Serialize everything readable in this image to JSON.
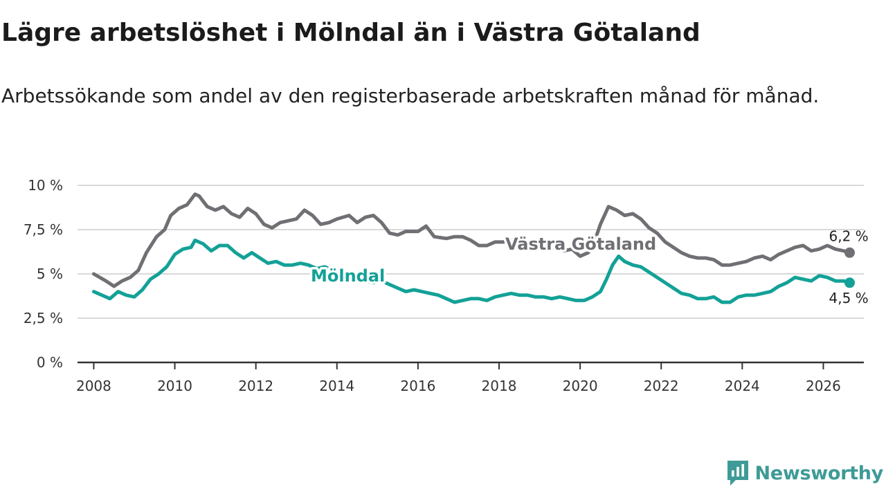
{
  "colors": {
    "vg": "#6f6f74",
    "molndal": "#13a197",
    "grid": "#d9d9d9",
    "axis": "#333333",
    "brand": "#3e9b97"
  },
  "chart_data": {
    "type": "line",
    "title": "Lägre arbetslöshet i Mölndal än i Västra Götaland",
    "subtitle": "Arbetssökande som andel av den registerbaserade arbetskraften månad för månad.",
    "xlabel": "",
    "ylabel": "",
    "xlim": [
      2007.6,
      2027.0
    ],
    "ylim": [
      0,
      10
    ],
    "x_ticks": [
      2008,
      2010,
      2012,
      2014,
      2016,
      2018,
      2020,
      2022,
      2024,
      2026
    ],
    "x_tick_labels": [
      "2008",
      "2010",
      "2012",
      "2014",
      "2016",
      "2018",
      "2020",
      "2022",
      "2024",
      "2026"
    ],
    "y_ticks": [
      0,
      2.5,
      5,
      7.5,
      10
    ],
    "y_tick_labels": [
      "0 %",
      "2,5 %",
      "5 %",
      "7,5 %",
      "10 %"
    ],
    "grid": true,
    "series": [
      {
        "name": "Västra Götaland",
        "color": "#6f6f74",
        "end_label": "6,2 %",
        "points": [
          [
            2008.0,
            5.0
          ],
          [
            2008.3,
            4.6
          ],
          [
            2008.5,
            4.3
          ],
          [
            2008.7,
            4.6
          ],
          [
            2008.9,
            4.8
          ],
          [
            2009.1,
            5.2
          ],
          [
            2009.3,
            6.2
          ],
          [
            2009.55,
            7.1
          ],
          [
            2009.75,
            7.5
          ],
          [
            2009.9,
            8.3
          ],
          [
            2010.1,
            8.7
          ],
          [
            2010.3,
            8.9
          ],
          [
            2010.5,
            9.5
          ],
          [
            2010.6,
            9.4
          ],
          [
            2010.8,
            8.8
          ],
          [
            2011.0,
            8.6
          ],
          [
            2011.2,
            8.8
          ],
          [
            2011.4,
            8.4
          ],
          [
            2011.6,
            8.2
          ],
          [
            2011.8,
            8.7
          ],
          [
            2012.0,
            8.4
          ],
          [
            2012.2,
            7.8
          ],
          [
            2012.4,
            7.6
          ],
          [
            2012.6,
            7.9
          ],
          [
            2012.8,
            8.0
          ],
          [
            2013.0,
            8.1
          ],
          [
            2013.2,
            8.6
          ],
          [
            2013.4,
            8.3
          ],
          [
            2013.6,
            7.8
          ],
          [
            2013.8,
            7.9
          ],
          [
            2014.0,
            8.1
          ],
          [
            2014.3,
            8.3
          ],
          [
            2014.5,
            7.9
          ],
          [
            2014.7,
            8.2
          ],
          [
            2014.9,
            8.3
          ],
          [
            2015.1,
            7.9
          ],
          [
            2015.3,
            7.3
          ],
          [
            2015.5,
            7.2
          ],
          [
            2015.7,
            7.4
          ],
          [
            2016.0,
            7.4
          ],
          [
            2016.2,
            7.7
          ],
          [
            2016.4,
            7.1
          ],
          [
            2016.7,
            7.0
          ],
          [
            2016.9,
            7.1
          ],
          [
            2017.1,
            7.1
          ],
          [
            2017.3,
            6.9
          ],
          [
            2017.5,
            6.6
          ],
          [
            2017.7,
            6.6
          ],
          [
            2017.9,
            6.8
          ],
          [
            2018.1,
            6.8
          ],
          [
            2018.3,
            6.9
          ],
          [
            2018.5,
            6.7
          ],
          [
            2018.7,
            6.5
          ],
          [
            2018.9,
            6.6
          ],
          [
            2019.1,
            6.4
          ],
          [
            2019.3,
            6.5
          ],
          [
            2019.6,
            6.3
          ],
          [
            2019.8,
            6.4
          ],
          [
            2020.0,
            6.0
          ],
          [
            2020.2,
            6.2
          ],
          [
            2020.35,
            6.8
          ],
          [
            2020.5,
            7.8
          ],
          [
            2020.7,
            8.8
          ],
          [
            2020.9,
            8.6
          ],
          [
            2021.1,
            8.3
          ],
          [
            2021.3,
            8.4
          ],
          [
            2021.5,
            8.1
          ],
          [
            2021.7,
            7.6
          ],
          [
            2021.9,
            7.3
          ],
          [
            2022.1,
            6.8
          ],
          [
            2022.3,
            6.5
          ],
          [
            2022.5,
            6.2
          ],
          [
            2022.7,
            6.0
          ],
          [
            2022.9,
            5.9
          ],
          [
            2023.1,
            5.9
          ],
          [
            2023.3,
            5.8
          ],
          [
            2023.5,
            5.5
          ],
          [
            2023.7,
            5.5
          ],
          [
            2023.9,
            5.6
          ],
          [
            2024.1,
            5.7
          ],
          [
            2024.3,
            5.9
          ],
          [
            2024.5,
            6.0
          ],
          [
            2024.7,
            5.8
          ],
          [
            2024.9,
            6.1
          ],
          [
            2025.1,
            6.3
          ],
          [
            2025.3,
            6.5
          ],
          [
            2025.5,
            6.6
          ],
          [
            2025.7,
            6.3
          ],
          [
            2025.9,
            6.4
          ],
          [
            2026.1,
            6.6
          ],
          [
            2026.3,
            6.4
          ],
          [
            2026.5,
            6.3
          ],
          [
            2026.65,
            6.2
          ]
        ]
      },
      {
        "name": "Mölndal",
        "color": "#13a197",
        "end_label": "4,5 %",
        "points": [
          [
            2008.0,
            4.0
          ],
          [
            2008.2,
            3.8
          ],
          [
            2008.4,
            3.6
          ],
          [
            2008.6,
            4.0
          ],
          [
            2008.8,
            3.8
          ],
          [
            2009.0,
            3.7
          ],
          [
            2009.2,
            4.1
          ],
          [
            2009.4,
            4.7
          ],
          [
            2009.6,
            5.0
          ],
          [
            2009.8,
            5.4
          ],
          [
            2010.0,
            6.1
          ],
          [
            2010.2,
            6.4
          ],
          [
            2010.4,
            6.5
          ],
          [
            2010.5,
            6.9
          ],
          [
            2010.7,
            6.7
          ],
          [
            2010.9,
            6.3
          ],
          [
            2011.1,
            6.6
          ],
          [
            2011.3,
            6.6
          ],
          [
            2011.5,
            6.2
          ],
          [
            2011.7,
            5.9
          ],
          [
            2011.9,
            6.2
          ],
          [
            2012.1,
            5.9
          ],
          [
            2012.3,
            5.6
          ],
          [
            2012.5,
            5.7
          ],
          [
            2012.7,
            5.5
          ],
          [
            2012.9,
            5.5
          ],
          [
            2013.1,
            5.6
          ],
          [
            2013.3,
            5.5
          ],
          [
            2013.5,
            5.3
          ],
          [
            2013.7,
            5.4
          ],
          [
            2013.9,
            5.2
          ],
          [
            2014.1,
            5.0
          ],
          [
            2014.3,
            4.8
          ],
          [
            2014.5,
            4.6
          ],
          [
            2014.7,
            4.6
          ],
          [
            2014.9,
            4.5
          ],
          [
            2015.1,
            4.6
          ],
          [
            2015.3,
            4.4
          ],
          [
            2015.5,
            4.2
          ],
          [
            2015.7,
            4.0
          ],
          [
            2015.9,
            4.1
          ],
          [
            2016.1,
            4.0
          ],
          [
            2016.3,
            3.9
          ],
          [
            2016.5,
            3.8
          ],
          [
            2016.7,
            3.6
          ],
          [
            2016.9,
            3.4
          ],
          [
            2017.1,
            3.5
          ],
          [
            2017.3,
            3.6
          ],
          [
            2017.5,
            3.6
          ],
          [
            2017.7,
            3.5
          ],
          [
            2017.9,
            3.7
          ],
          [
            2018.1,
            3.8
          ],
          [
            2018.3,
            3.9
          ],
          [
            2018.5,
            3.8
          ],
          [
            2018.7,
            3.8
          ],
          [
            2018.9,
            3.7
          ],
          [
            2019.1,
            3.7
          ],
          [
            2019.3,
            3.6
          ],
          [
            2019.5,
            3.7
          ],
          [
            2019.7,
            3.6
          ],
          [
            2019.9,
            3.5
          ],
          [
            2020.1,
            3.5
          ],
          [
            2020.3,
            3.7
          ],
          [
            2020.5,
            4.0
          ],
          [
            2020.65,
            4.7
          ],
          [
            2020.8,
            5.5
          ],
          [
            2020.95,
            6.0
          ],
          [
            2021.1,
            5.7
          ],
          [
            2021.3,
            5.5
          ],
          [
            2021.5,
            5.4
          ],
          [
            2021.7,
            5.1
          ],
          [
            2021.9,
            4.8
          ],
          [
            2022.1,
            4.5
          ],
          [
            2022.3,
            4.2
          ],
          [
            2022.5,
            3.9
          ],
          [
            2022.7,
            3.8
          ],
          [
            2022.9,
            3.6
          ],
          [
            2023.1,
            3.6
          ],
          [
            2023.3,
            3.7
          ],
          [
            2023.5,
            3.4
          ],
          [
            2023.7,
            3.4
          ],
          [
            2023.9,
            3.7
          ],
          [
            2024.1,
            3.8
          ],
          [
            2024.3,
            3.8
          ],
          [
            2024.5,
            3.9
          ],
          [
            2024.7,
            4.0
          ],
          [
            2024.9,
            4.3
          ],
          [
            2025.1,
            4.5
          ],
          [
            2025.3,
            4.8
          ],
          [
            2025.5,
            4.7
          ],
          [
            2025.7,
            4.6
          ],
          [
            2025.9,
            4.9
          ],
          [
            2026.1,
            4.8
          ],
          [
            2026.3,
            4.6
          ],
          [
            2026.5,
            4.6
          ],
          [
            2026.65,
            4.5
          ]
        ]
      }
    ],
    "annotations": [
      "Västra Götaland",
      "Mölndal"
    ],
    "logo_text": "Newsworthy"
  }
}
